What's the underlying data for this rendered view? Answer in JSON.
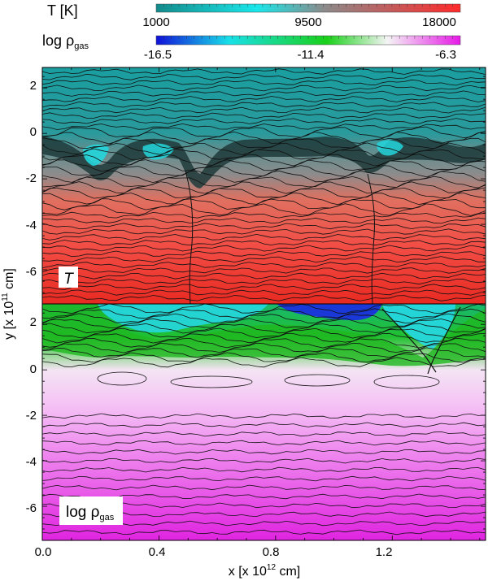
{
  "chart_data": {
    "type": "heatmap",
    "colorbars": [
      {
        "name": "T",
        "label": "T  [K]",
        "ticks": [
          "1000",
          "9500",
          "18000"
        ],
        "range": [
          1000,
          18000
        ],
        "colors": [
          "#138a8a",
          "#19e7ea",
          "#8b8b8b",
          "#ff2a2a"
        ]
      },
      {
        "name": "log rho_gas",
        "label_main": "log ρ",
        "label_sub": "gas",
        "ticks": [
          "-16.5",
          "-11.4",
          "-6.3"
        ],
        "range": [
          -16.5,
          -6.3
        ],
        "colors": [
          "#1010d8",
          "#19e0e8",
          "#19d019",
          "#f4f4f4",
          "#e619e6"
        ]
      }
    ],
    "panels": [
      {
        "name": "temperature",
        "inset_label": "T",
        "y_ticks": [
          "2",
          "0",
          "-2",
          "-4",
          "-6"
        ],
        "y_range": [
          -7.5,
          2.9
        ]
      },
      {
        "name": "density",
        "inset_label_main": "log ρ",
        "inset_label_sub": "gas",
        "y_ticks": [
          "2",
          "0",
          "-2",
          "-4",
          "-6"
        ],
        "y_range": [
          -7.5,
          2.9
        ]
      }
    ],
    "x_ticks": [
      "0.0",
      "0.4",
      "0.8",
      "1.2"
    ],
    "x_range": [
      0.0,
      1.52
    ],
    "xlabel_main": "x  [x 10",
    "xlabel_exp": "12",
    "xlabel_tail": " cm]",
    "ylabel_main": "y  [x 10",
    "ylabel_exp": "11",
    "ylabel_tail": " cm]"
  }
}
